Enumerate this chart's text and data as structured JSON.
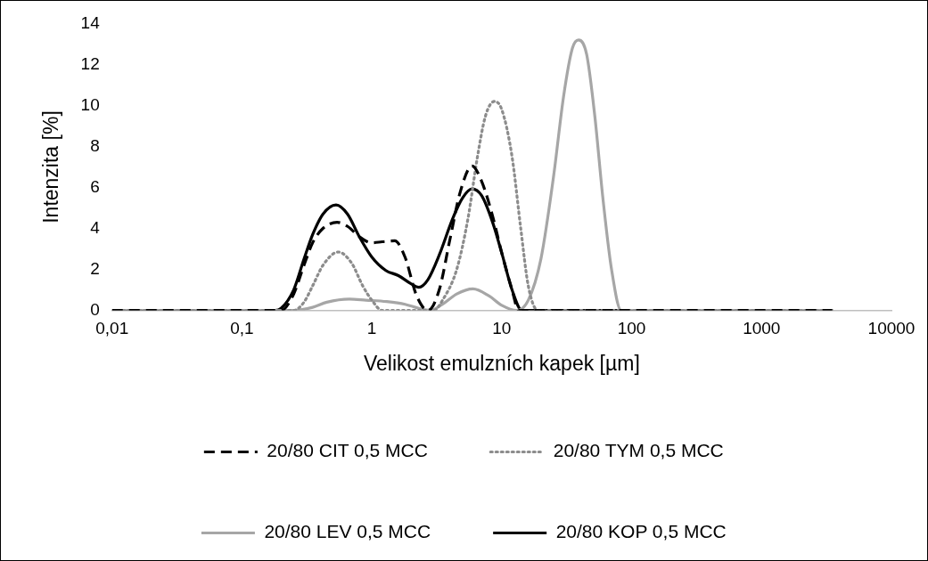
{
  "chart_data": {
    "type": "line",
    "xlabel": "Velikost emulzních kapek [µm]",
    "ylabel": "Intenzita [%]",
    "log": "x",
    "grid": false,
    "legend": "bottom",
    "marker": "none",
    "xlim": [
      0.01,
      10000
    ],
    "xticks": [
      {
        "value": 0.01,
        "label": "0,01"
      },
      {
        "value": 0.1,
        "label": "0,1"
      },
      1,
      10,
      100,
      1000,
      10000
    ],
    "ylim": [
      0,
      14
    ],
    "yticks": [
      0,
      2,
      4,
      6,
      8,
      10,
      12,
      14
    ],
    "series": [
      {
        "name": "20/80 CIT 0,5 MCC",
        "color": "#000000",
        "line_style": "dashed",
        "x": [
          0.01,
          0.2,
          0.25,
          0.3,
          0.35,
          0.42,
          0.54,
          0.65,
          0.8,
          1.0,
          1.2,
          1.5,
          1.8,
          2.2,
          2.7,
          3.3,
          4.0,
          4.8,
          5.9,
          7.0,
          8.5,
          10,
          12,
          13.5,
          3500
        ],
        "values": [
          0,
          0,
          0.8,
          2.2,
          3.3,
          4.0,
          4.3,
          4.1,
          3.6,
          3.3,
          3.35,
          3.4,
          2.6,
          0.75,
          0,
          1.0,
          3.5,
          5.8,
          7.05,
          6.3,
          4.6,
          2.8,
          1.0,
          0,
          0
        ]
      },
      {
        "name": "20/80 TYM 0,5 MCC",
        "color": "#8c8c8c",
        "line_style": "dotted",
        "x": [
          0.01,
          0.25,
          0.3,
          0.35,
          0.42,
          0.55,
          0.7,
          0.85,
          1.0,
          1.2,
          3.0,
          3.5,
          4.5,
          5.5,
          6.5,
          7.5,
          8.8,
          10,
          12,
          14,
          16,
          19,
          3500
        ],
        "values": [
          0,
          0,
          0.4,
          1.2,
          2.2,
          2.85,
          2.3,
          1.2,
          0.5,
          0,
          0,
          0.5,
          2.0,
          4.5,
          7.5,
          9.5,
          10.2,
          9.8,
          7.5,
          4.0,
          1.2,
          0,
          0
        ]
      },
      {
        "name": "20/80 LEV 0,5 MCC",
        "color": "#a6a6a6",
        "line_style": "solid",
        "x": [
          0.01,
          0.25,
          0.35,
          0.45,
          0.67,
          0.9,
          1.3,
          1.8,
          2.3,
          2.8,
          3.5,
          4.5,
          6,
          8,
          10,
          13,
          16,
          20,
          25,
          30,
          35,
          39,
          45,
          52,
          60,
          70,
          83,
          3500
        ],
        "values": [
          0,
          0,
          0.15,
          0.4,
          0.55,
          0.5,
          0.43,
          0.3,
          0.1,
          0,
          0.3,
          0.8,
          1.05,
          0.7,
          0.25,
          0,
          0.5,
          2.5,
          6.5,
          10.5,
          12.8,
          13.2,
          12.5,
          9.5,
          5.5,
          2.0,
          0,
          0
        ]
      },
      {
        "name": "20/80 KOP 0,5 MCC",
        "color": "#000000",
        "line_style": "solid",
        "x": [
          0.01,
          0.18,
          0.2,
          0.25,
          0.3,
          0.35,
          0.42,
          0.53,
          0.65,
          0.8,
          1.0,
          1.28,
          1.6,
          2.0,
          2.3,
          2.7,
          3.3,
          4.2,
          5.0,
          5.9,
          7.0,
          8.5,
          10,
          12,
          14.3,
          3500
        ],
        "values": [
          0,
          0,
          0.1,
          1.0,
          2.5,
          3.7,
          4.7,
          5.15,
          4.7,
          3.6,
          2.6,
          1.95,
          1.7,
          1.3,
          1.13,
          1.5,
          2.7,
          4.5,
          5.5,
          5.93,
          5.6,
          4.3,
          2.8,
          1.0,
          0,
          0
        ]
      }
    ]
  }
}
